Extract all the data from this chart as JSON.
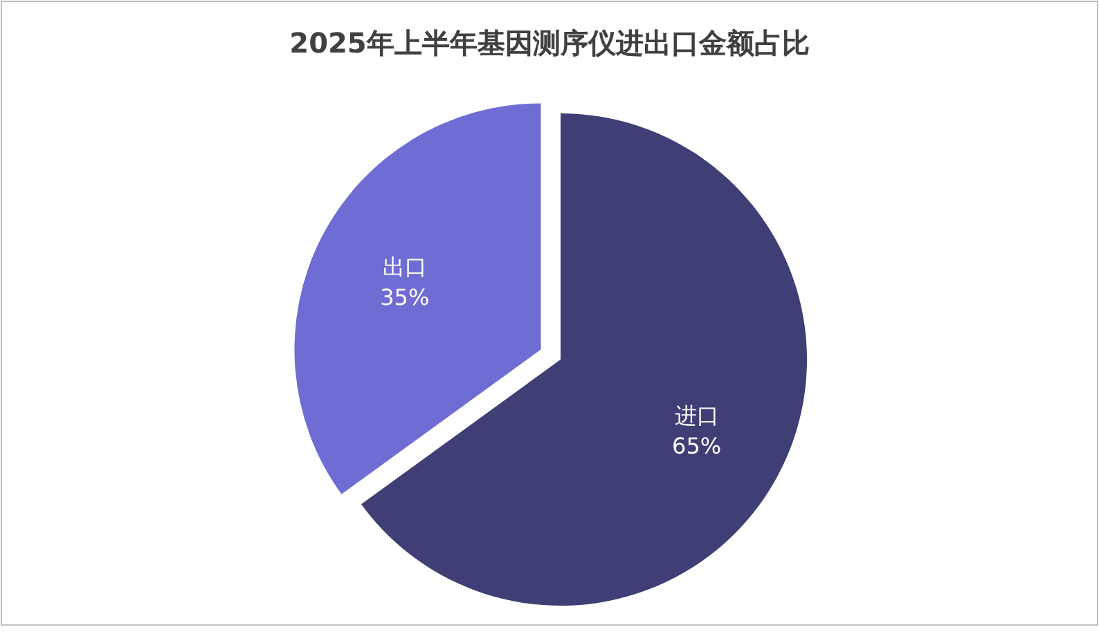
{
  "chart_data": {
    "type": "pie",
    "title": "2025年上半年基因测序仪进出口金额占比",
    "categories": [
      "进口",
      "出口"
    ],
    "values": [
      65,
      35
    ],
    "colors": [
      "#3f3e75",
      "#6f6dd3"
    ],
    "value_labels": [
      "65%",
      "35%"
    ]
  }
}
